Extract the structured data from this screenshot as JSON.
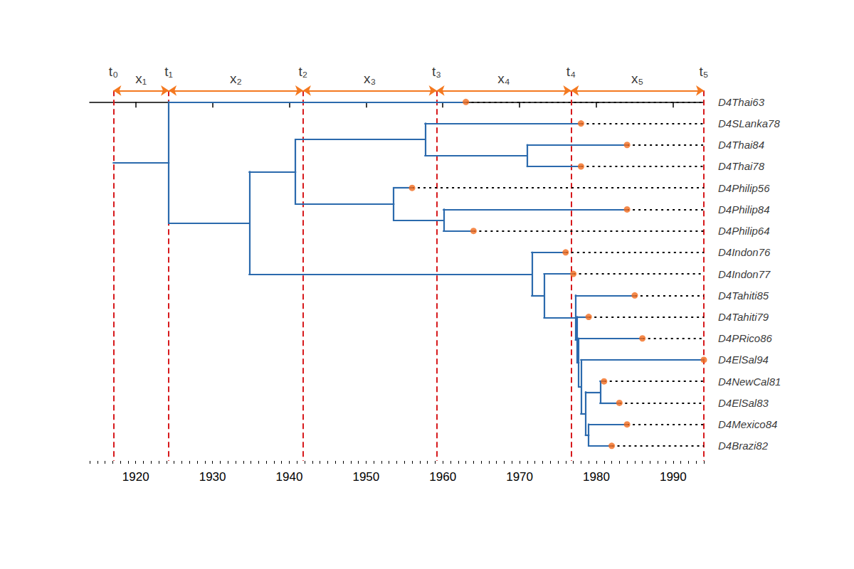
{
  "chart_data": {
    "type": "tree",
    "xlim": [
      1914,
      1994
    ],
    "xticks": [
      1920,
      1930,
      1940,
      1950,
      1960,
      1970,
      1980,
      1990
    ],
    "time_points": [
      {
        "label": "t₀",
        "value": 1917.1
      },
      {
        "label": "t₁",
        "value": 1924.3
      },
      {
        "label": "t₂",
        "value": 1941.8
      },
      {
        "label": "t₃",
        "value": 1959.2
      },
      {
        "label": "t₄",
        "value": 1976.7
      },
      {
        "label": "t₅",
        "value": 1994
      }
    ],
    "intervals": [
      "x₁",
      "x₂",
      "x₃",
      "x₄",
      "x₅"
    ],
    "tree": {
      "date": 1917.1,
      "children": [
        {
          "date": 1924.3,
          "children": [
            {
              "label": "D4Thai63",
              "date": 1963
            },
            {
              "date": 1934.8,
              "children": [
                {
                  "date": 1940.8,
                  "children": [
                    {
                      "date": 1957.7,
                      "children": [
                        {
                          "label": "D4SLanka78",
                          "date": 1978
                        },
                        {
                          "date": 1971.0,
                          "children": [
                            {
                              "label": "D4Thai84",
                              "date": 1984
                            },
                            {
                              "label": "D4Thai78",
                              "date": 1978
                            }
                          ]
                        }
                      ]
                    },
                    {
                      "date": 1953.6,
                      "children": [
                        {
                          "label": "D4Philip56",
                          "date": 1956
                        },
                        {
                          "date": 1960.1,
                          "children": [
                            {
                              "label": "D4Philip84",
                              "date": 1984
                            },
                            {
                              "label": "D4Philip64",
                              "date": 1964
                            }
                          ]
                        }
                      ]
                    }
                  ]
                },
                {
                  "date": 1971.6,
                  "children": [
                    {
                      "label": "D4Indon76",
                      "date": 1976
                    },
                    {
                      "date": 1973.2,
                      "children": [
                        {
                          "label": "D4Indon77",
                          "date": 1977
                        },
                        {
                          "date": 1977.3,
                          "children": [
                            {
                              "label": "D4Tahiti85",
                              "date": 1985
                            },
                            {
                              "date": 1977.5,
                              "children": [
                                {
                                  "label": "D4Tahiti79",
                                  "date": 1979
                                },
                                {
                                  "date": 1977.7,
                                  "children": [
                                    {
                                      "label": "D4PRico86",
                                      "date": 1986
                                    },
                                    {
                                      "date": 1978.0,
                                      "children": [
                                        {
                                          "label": "D4ElSal94",
                                          "date": 1994
                                        },
                                        {
                                          "date": 1978.6,
                                          "children": [
                                            {
                                              "date": 1980.5,
                                              "children": [
                                                {
                                                  "label": "D4NewCal81",
                                                  "date": 1981
                                                },
                                                {
                                                  "label": "D4ElSal83",
                                                  "date": 1983
                                                }
                                              ]
                                            },
                                            {
                                              "date": 1979.0,
                                              "children": [
                                                {
                                                  "label": "D4Mexico84",
                                                  "date": 1984
                                                },
                                                {
                                                  "label": "D4Brazi82",
                                                  "date": 1982
                                                }
                                              ]
                                            }
                                          ]
                                        }
                                      ]
                                    }
                                  ]
                                }
                              ]
                            }
                          ]
                        }
                      ]
                    }
                  ]
                }
              ]
            }
          ]
        }
      ]
    }
  }
}
